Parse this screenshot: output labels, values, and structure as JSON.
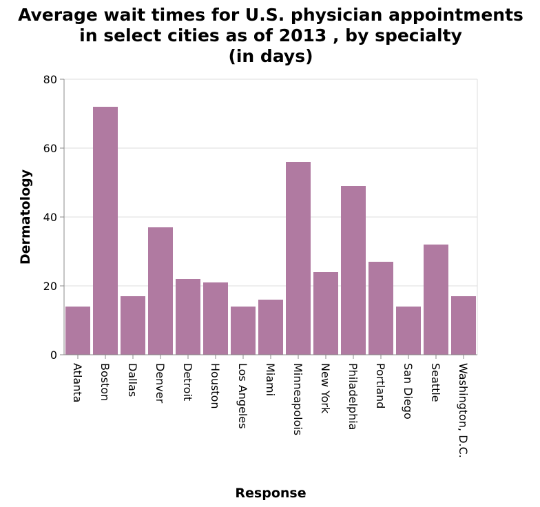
{
  "chart_data": {
    "type": "bar",
    "title_lines": [
      "Average wait times for U.S. physician appointments",
      "in select cities as of 2013 , by specialty",
      "(in days)"
    ],
    "xlabel": "Response",
    "ylabel": "Dermatology",
    "ylim": [
      0,
      80
    ],
    "yticks": [
      0,
      20,
      40,
      60,
      80
    ],
    "grid": true,
    "bar_color": "#b07aa1",
    "categories": [
      "Atlanta",
      "Boston",
      "Dallas",
      "Denver",
      "Detroit",
      "Houston",
      "Los Angeles",
      "Miami",
      "Minneapolois",
      "New York",
      "Philadelphia",
      "Portland",
      "San Diego",
      "Seattle",
      "Washington, D.C."
    ],
    "values": [
      14,
      72,
      17,
      37,
      22,
      21,
      14,
      16,
      56,
      24,
      49,
      27,
      14,
      32,
      17
    ]
  }
}
